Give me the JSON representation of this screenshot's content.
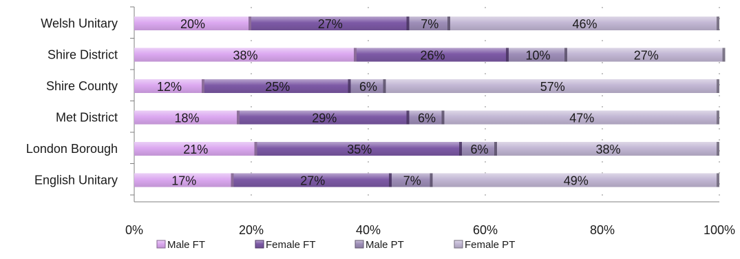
{
  "chart_data": {
    "type": "bar",
    "orientation": "horizontal",
    "stacked": true,
    "percent_stacked": true,
    "categories": [
      "Welsh Unitary",
      "Shire District",
      "Shire County",
      "Met District",
      "London Borough",
      "English Unitary"
    ],
    "series": [
      {
        "name": "Male FT",
        "values": [
          20,
          38,
          12,
          18,
          21,
          17
        ],
        "color": "#dba8f0"
      },
      {
        "name": "Female FT",
        "values": [
          27,
          26,
          25,
          29,
          35,
          27
        ],
        "color": "#7d5aa6"
      },
      {
        "name": "Male PT",
        "values": [
          7,
          10,
          6,
          6,
          6,
          7
        ],
        "color": "#9e8eb8"
      },
      {
        "name": "Female PT",
        "values": [
          46,
          27,
          57,
          47,
          38,
          49
        ],
        "color": "#c2b7d4"
      }
    ],
    "data_labels": [
      [
        "20%",
        "27%",
        "7%",
        "46%"
      ],
      [
        "38%",
        "26%",
        "10%",
        "27%"
      ],
      [
        "12%",
        "25%",
        "6%",
        "57%"
      ],
      [
        "18%",
        "29%",
        "6%",
        "47%"
      ],
      [
        "21%",
        "35%",
        "6%",
        "38%"
      ],
      [
        "17%",
        "27%",
        "7%",
        "49%"
      ]
    ],
    "x_ticks": [
      "0%",
      "20%",
      "40%",
      "60%",
      "80%",
      "100%"
    ],
    "xlim": [
      0,
      100
    ],
    "grid": true,
    "legend_position": "bottom",
    "title": "",
    "xlabel": "",
    "ylabel": ""
  }
}
